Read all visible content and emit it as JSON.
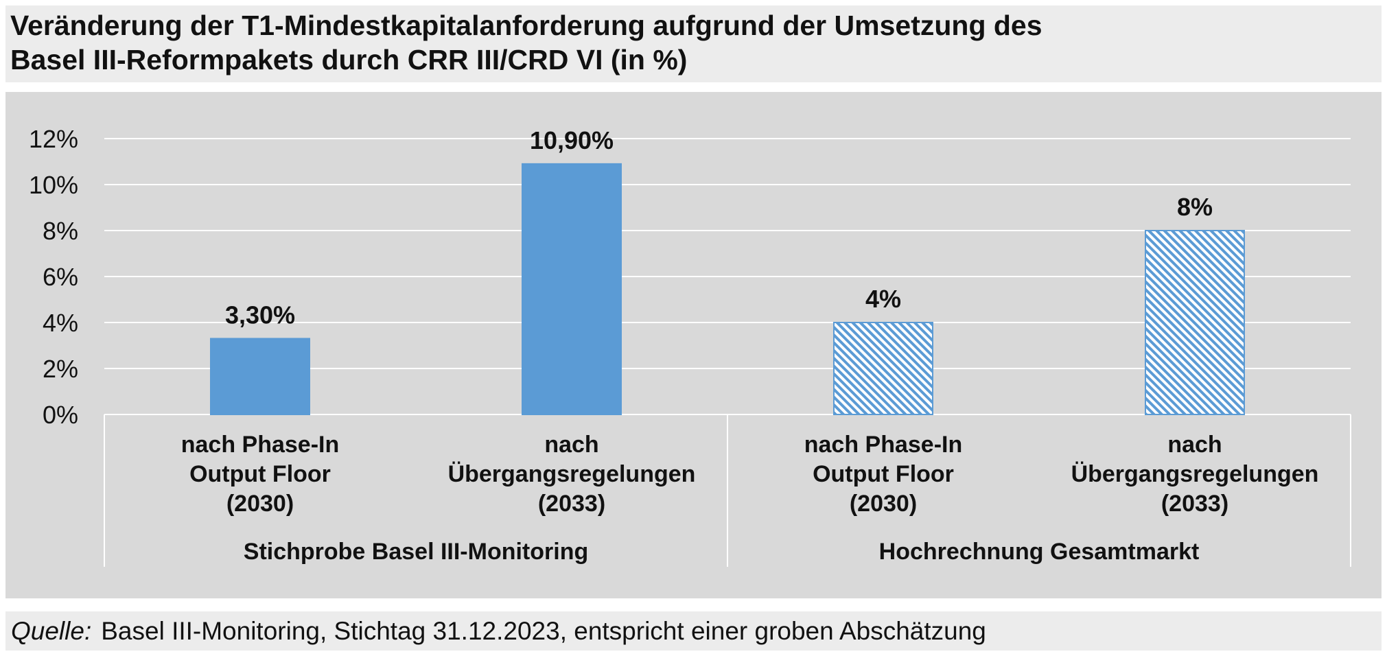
{
  "title": {
    "line1": "Veränderung der T1-Mindestkapitalanforderung aufgrund der Umsetzung des",
    "line2": "Basel III-Reformpakets durch CRR III/CRD VI (in %)"
  },
  "source": {
    "label": "Quelle:",
    "text": "Basel III-Monitoring, Stichtag 31.12.2023, entspricht einer groben Abschätzung"
  },
  "colors": {
    "bar": "#5b9bd5",
    "hatch_light": "#ffffff",
    "grid": "#ffffff",
    "plot_bg": "#d9d9d9"
  },
  "chart_data": {
    "type": "bar",
    "title": "Veränderung der T1-Mindestkapitalanforderung aufgrund der Umsetzung des Basel III-Reformpakets durch CRR III/CRD VI (in %)",
    "ylim": [
      0,
      12
    ],
    "yticks": [
      "0%",
      "2%",
      "4%",
      "6%",
      "8%",
      "10%",
      "12%"
    ],
    "grid": true,
    "legend": "none",
    "categories": [
      {
        "lines": [
          "nach Phase-In",
          "Output Floor",
          "(2030)"
        ],
        "group": 0,
        "value": 3.3,
        "label": "3,30%",
        "pattern": "solid"
      },
      {
        "lines": [
          "nach",
          "Übergangsregelungen",
          "(2033)"
        ],
        "group": 0,
        "value": 10.9,
        "label": "10,90%",
        "pattern": "solid"
      },
      {
        "lines": [
          "nach Phase-In",
          "Output Floor",
          "(2030)"
        ],
        "group": 1,
        "value": 4,
        "label": "4%",
        "pattern": "hatched"
      },
      {
        "lines": [
          "nach",
          "Übergangsregelungen",
          "(2033)"
        ],
        "group": 1,
        "value": 8,
        "label": "8%",
        "pattern": "hatched"
      }
    ],
    "groups": [
      "Stichprobe Basel III-Monitoring",
      "Hochrechnung Gesamtmarkt"
    ]
  }
}
